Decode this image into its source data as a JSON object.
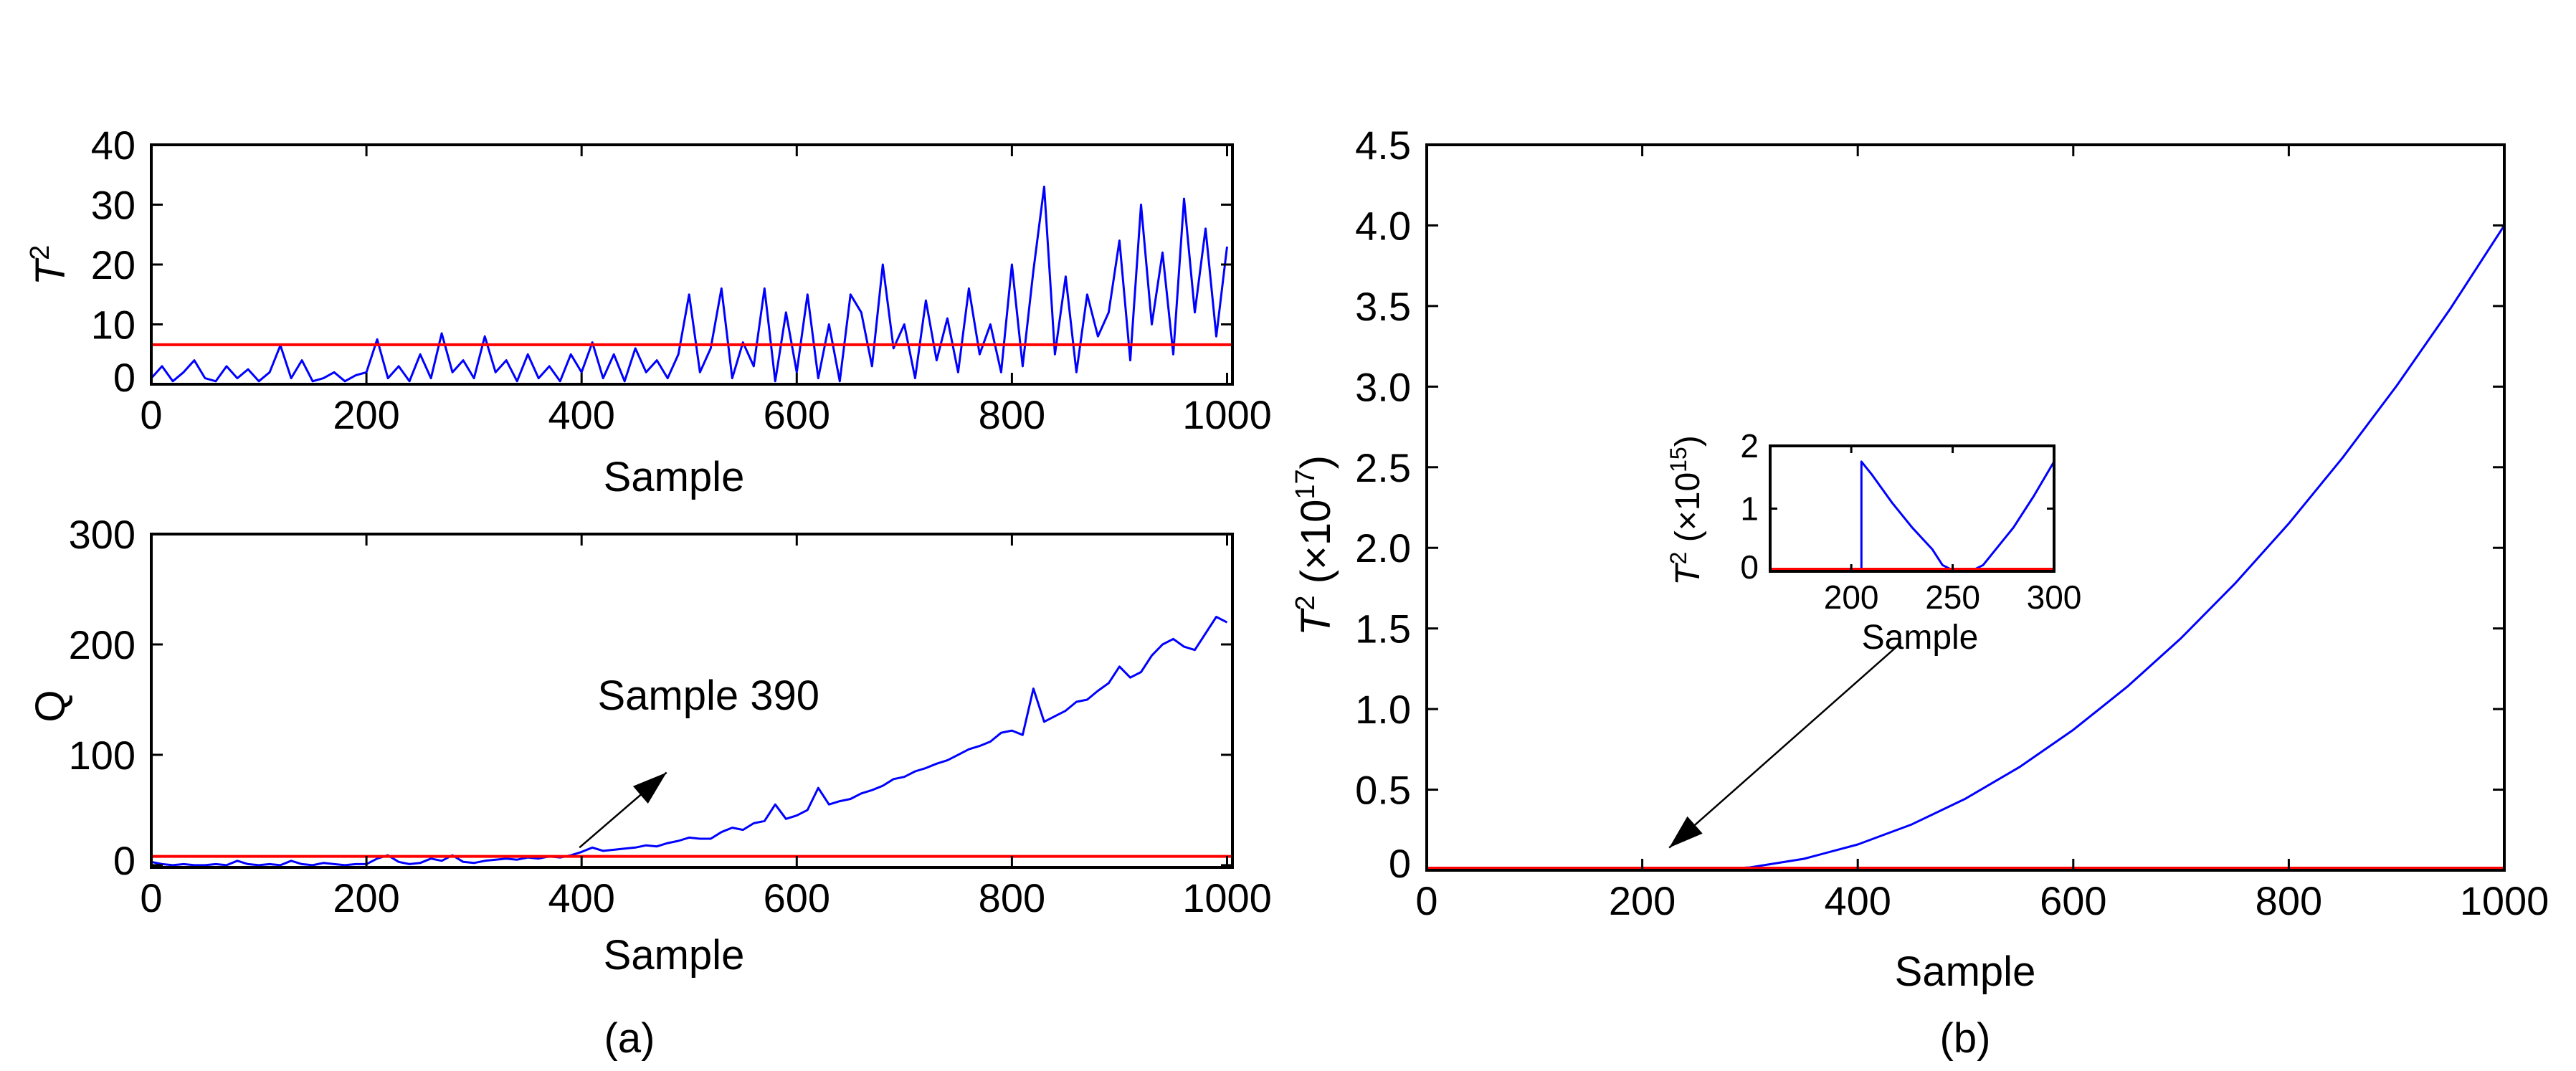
{
  "colors": {
    "series": "#0000ff",
    "threshold": "#ff0000",
    "arrow": "#000000"
  },
  "chart_data": [
    {
      "id": "a_top",
      "type": "line",
      "panel": "(a)",
      "xlabel": "Sample",
      "ylabel": {
        "var": "T",
        "sup": "2"
      },
      "xlim": [
        0,
        1005
      ],
      "ylim": [
        0,
        40
      ],
      "xticks": [
        0,
        200,
        400,
        600,
        800,
        1000
      ],
      "xtick_labels": [
        "0",
        "200",
        "400",
        "600",
        "800",
        "1000"
      ],
      "yticks": [
        0,
        10,
        20,
        30,
        40
      ],
      "ytick_labels": [
        "0",
        "10",
        "20",
        "30",
        "40"
      ],
      "threshold": 6.6,
      "x_step": 10,
      "values": [
        1,
        3,
        0.5,
        2,
        4,
        1,
        0.5,
        3,
        1,
        2.5,
        0.5,
        2,
        6.5,
        1,
        4,
        0.5,
        1,
        2,
        0.5,
        1.5,
        2,
        7.5,
        1,
        3,
        0.5,
        5,
        1,
        8.5,
        2,
        4,
        1,
        8,
        2,
        4,
        0.5,
        5,
        1,
        3,
        0.5,
        5,
        2,
        7,
        1,
        5,
        0.5,
        6,
        2,
        4,
        1,
        5,
        15,
        2,
        6,
        16,
        1,
        7,
        3,
        16,
        0.5,
        12,
        2,
        15,
        1,
        10,
        0.5,
        15,
        12,
        3,
        20,
        6,
        10,
        1,
        14,
        4,
        11,
        2,
        16,
        5,
        10,
        2,
        20,
        3,
        19,
        33,
        5,
        18,
        2,
        15,
        8,
        12,
        24,
        4,
        30,
        10,
        22,
        5,
        31,
        12,
        26,
        8,
        23
      ]
    },
    {
      "id": "a_bottom",
      "type": "line",
      "panel": "(a)",
      "xlabel": "Sample",
      "ylabel": {
        "var": "Q"
      },
      "xlim": [
        0,
        1005
      ],
      "ylim": [
        -2,
        300
      ],
      "xticks": [
        0,
        200,
        400,
        600,
        800,
        1000
      ],
      "xtick_labels": [
        "0",
        "200",
        "400",
        "600",
        "800",
        "1000"
      ],
      "yticks": [
        0,
        100,
        200,
        300
      ],
      "ytick_labels": [
        "0",
        "100",
        "200",
        "300"
      ],
      "threshold": 8,
      "x_step": 10,
      "values": [
        3,
        1,
        0,
        1,
        0,
        0,
        1,
        0,
        4,
        1,
        0,
        1,
        0,
        4,
        1,
        0,
        2,
        1,
        0,
        1,
        1,
        6,
        9,
        3,
        1,
        2,
        6,
        4,
        9,
        3,
        2,
        4,
        5,
        6,
        5,
        7,
        6,
        8,
        7,
        9,
        12,
        16,
        13,
        14,
        15,
        16,
        18,
        17,
        20,
        22,
        25,
        24,
        24,
        30,
        34,
        32,
        38,
        40,
        55,
        42,
        45,
        50,
        70,
        55,
        58,
        60,
        65,
        68,
        72,
        78,
        80,
        85,
        88,
        92,
        95,
        100,
        105,
        108,
        112,
        120,
        122,
        118,
        160,
        130,
        135,
        140,
        148,
        150,
        158,
        165,
        180,
        170,
        175,
        190,
        200,
        205,
        198,
        195,
        210,
        225,
        220
      ],
      "annotation": {
        "text": "Sample 390",
        "text_at": [
          518,
          141
        ],
        "arrow_from": [
          398,
          16
        ],
        "arrow_to": [
          479,
          84
        ]
      }
    },
    {
      "id": "b_main",
      "type": "line",
      "panel": "(b)",
      "xlabel": "Sample",
      "ylabel": {
        "var": "T",
        "sup": "2",
        "unit_pre": " (×10",
        "unit_sup": "17",
        "unit_post": ")"
      },
      "xlim": [
        0,
        1000
      ],
      "ylim": [
        0,
        4.5
      ],
      "xticks": [
        0,
        200,
        400,
        600,
        800,
        1000
      ],
      "xtick_labels": [
        "0",
        "200",
        "400",
        "600",
        "800",
        "1000"
      ],
      "yticks": [
        0,
        0.5,
        1,
        1.5,
        2,
        2.5,
        3,
        3.5,
        4,
        4.5
      ],
      "ytick_labels": [
        "0",
        "0.5",
        "1.0",
        "1.5",
        "2.0",
        "2.5",
        "3.0",
        "3.5",
        "4.0",
        "4.5"
      ],
      "threshold": 0.002,
      "x": [
        200,
        200,
        250,
        300,
        350,
        400,
        450,
        500,
        550,
        600,
        650,
        700,
        750,
        800,
        850,
        900,
        950,
        1000
      ],
      "values": [
        0.03,
        0.005,
        0.0,
        0.018,
        0.071,
        0.16,
        0.284,
        0.444,
        0.64,
        0.871,
        1.138,
        1.44,
        1.778,
        2.151,
        2.56,
        3.004,
        3.484,
        4.0
      ],
      "annotation": {
        "arrow_from": [
          440,
          1.41
        ],
        "arrow_to": [
          225,
          0.14
        ]
      }
    },
    {
      "id": "b_inset",
      "type": "line",
      "xlabel": "Sample",
      "ylabel": {
        "var": "T",
        "sup": "2",
        "unit_pre": " (×10",
        "unit_sup": "15",
        "unit_post": ")"
      },
      "xlim": [
        160,
        300
      ],
      "ylim": [
        0,
        2
      ],
      "xticks": [
        200,
        250,
        300
      ],
      "xtick_labels": [
        "200",
        "250",
        "300"
      ],
      "yticks": [
        0,
        1,
        2
      ],
      "ytick_labels": [
        "0",
        "1",
        "2"
      ],
      "threshold": 0.03,
      "x": [
        205,
        205,
        210,
        220,
        230,
        240,
        245,
        250,
        255,
        260,
        265,
        270,
        280,
        290,
        300
      ],
      "values": [
        0,
        1.75,
        1.55,
        1.1,
        0.7,
        0.35,
        0.1,
        0.02,
        0,
        0.02,
        0.1,
        0.3,
        0.7,
        1.2,
        1.75
      ]
    }
  ],
  "captions": {
    "a": "(a)",
    "b": "(b)"
  }
}
